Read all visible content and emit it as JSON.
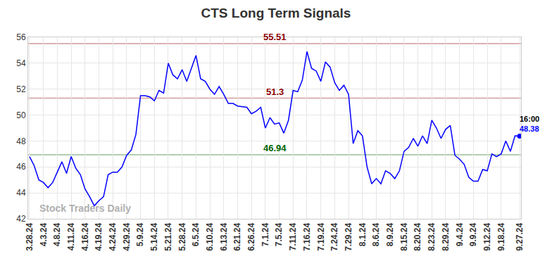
{
  "chart_data": {
    "type": "line",
    "title": "CTS Long Term Signals",
    "watermark": "Stock Traders Daily",
    "color": "#0000ff",
    "grid": true,
    "ylim": [
      42,
      56
    ],
    "yticks": [
      42,
      44,
      46,
      48,
      50,
      52,
      54,
      56
    ],
    "categories": [
      "3.28.24",
      null,
      null,
      "4.3.24",
      null,
      null,
      "4.8.24",
      null,
      null,
      "4.11.24",
      null,
      null,
      "4.16.24",
      null,
      null,
      "4.19.24",
      null,
      null,
      "4.24.24",
      null,
      null,
      "4.29.24",
      null,
      null,
      "5.9.24",
      null,
      null,
      "5.14.24",
      null,
      null,
      "5.21.24",
      null,
      null,
      "5.28.24",
      null,
      null,
      "6.5.24",
      null,
      null,
      "6.10.24",
      null,
      null,
      "6.13.24",
      null,
      null,
      "6.21.24",
      null,
      null,
      "6.26.24",
      null,
      null,
      "7.1.24",
      null,
      null,
      "7.5.24",
      null,
      null,
      "7.11.24",
      null,
      null,
      "7.16.24",
      null,
      null,
      "7.19.24",
      null,
      null,
      "7.24.24",
      null,
      null,
      "7.29.24",
      null,
      null,
      "8.1.24",
      null,
      null,
      "8.6.24",
      null,
      null,
      "8.9.24",
      null,
      null,
      "8.15.24",
      null,
      null,
      "8.20.24",
      null,
      null,
      "8.23.24",
      null,
      null,
      "8.29.24",
      null,
      null,
      "9.4.24",
      null,
      null,
      "9.9.24",
      null,
      null,
      "9.12.24",
      null,
      null,
      "9.18.24",
      null,
      null,
      null,
      "9.27.24"
    ],
    "values": [
      46.8,
      46.1,
      45.0,
      44.8,
      44.4,
      44.8,
      45.6,
      46.4,
      45.5,
      46.8,
      45.9,
      45.4,
      44.3,
      43.7,
      43.0,
      43.4,
      43.7,
      45.4,
      45.6,
      45.6,
      46.0,
      46.9,
      47.3,
      48.5,
      51.5,
      51.5,
      51.4,
      51.1,
      51.9,
      51.7,
      54.0,
      53.1,
      52.8,
      53.5,
      52.6,
      53.6,
      54.6,
      52.8,
      52.6,
      52.0,
      51.6,
      52.2,
      51.6,
      50.9,
      50.9,
      50.7,
      50.65,
      50.6,
      50.1,
      50.3,
      50.6,
      49.0,
      49.8,
      49.3,
      49.4,
      48.6,
      49.6,
      51.9,
      51.8,
      52.7,
      54.9,
      53.6,
      53.4,
      52.6,
      54.1,
      53.7,
      52.5,
      51.9,
      52.3,
      51.6,
      47.8,
      48.8,
      48.4,
      46.0,
      44.7,
      45.1,
      44.7,
      45.7,
      45.5,
      45.1,
      45.7,
      47.2,
      47.5,
      48.2,
      47.6,
      48.4,
      47.8,
      49.6,
      49.0,
      48.2,
      48.9,
      49.2,
      46.9,
      46.6,
      46.2,
      45.2,
      44.9,
      44.9,
      45.8,
      45.7,
      47.0,
      46.8,
      47.0,
      48.0,
      47.2,
      48.4,
      48.38
    ],
    "levels": [
      {
        "value": 55.51,
        "color": "#8b0000"
      },
      {
        "value": 51.3,
        "color": "#8b0000"
      },
      {
        "value": 46.94,
        "color": "#006400"
      }
    ],
    "last_label": {
      "time": "16:00",
      "value": 48.38
    }
  }
}
